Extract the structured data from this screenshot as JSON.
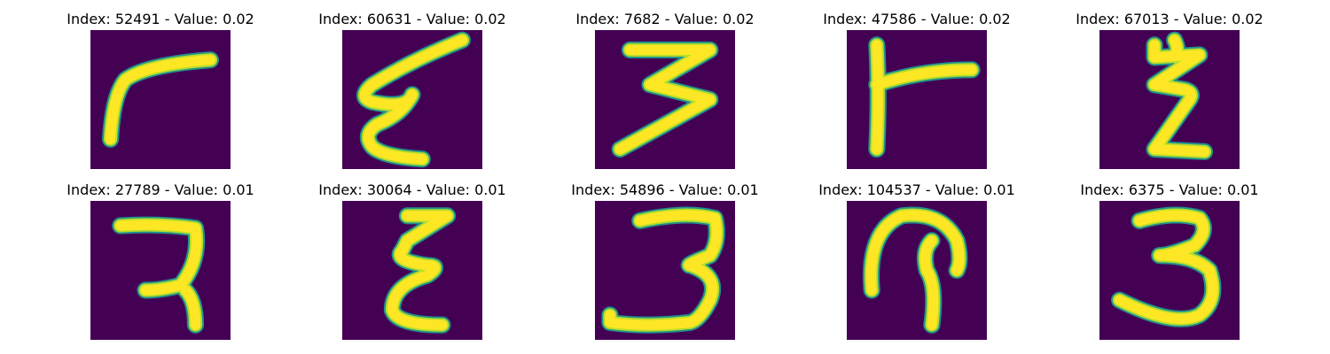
{
  "colors": {
    "background": "#440154",
    "stroke_core": "#fde725",
    "stroke_mid": "#b5de2b",
    "stroke_edge": "#21918c"
  },
  "panels": [
    {
      "title": "Index: 52491 - Value: 0.02",
      "index": "52491",
      "value": "0.02"
    },
    {
      "title": "Index: 60631 - Value: 0.02",
      "index": "60631",
      "value": "0.02"
    },
    {
      "title": "Index: 7682 - Value: 0.02",
      "index": "7682",
      "value": "0.02"
    },
    {
      "title": "Index: 47586 - Value: 0.02",
      "index": "47586",
      "value": "0.02"
    },
    {
      "title": "Index: 67013 - Value: 0.02",
      "index": "67013",
      "value": "0.02"
    },
    {
      "title": "Index: 27789 - Value: 0.01",
      "index": "27789",
      "value": "0.01"
    },
    {
      "title": "Index: 30064 - Value: 0.01",
      "index": "30064",
      "value": "0.01"
    },
    {
      "title": "Index: 54896 - Value: 0.01",
      "index": "54896",
      "value": "0.01"
    },
    {
      "title": "Index: 104537 - Value: 0.01",
      "index": "104537",
      "value": "0.01"
    },
    {
      "title": "Index: 6375 - Value: 0.01",
      "index": "6375",
      "value": "0.01"
    }
  ]
}
